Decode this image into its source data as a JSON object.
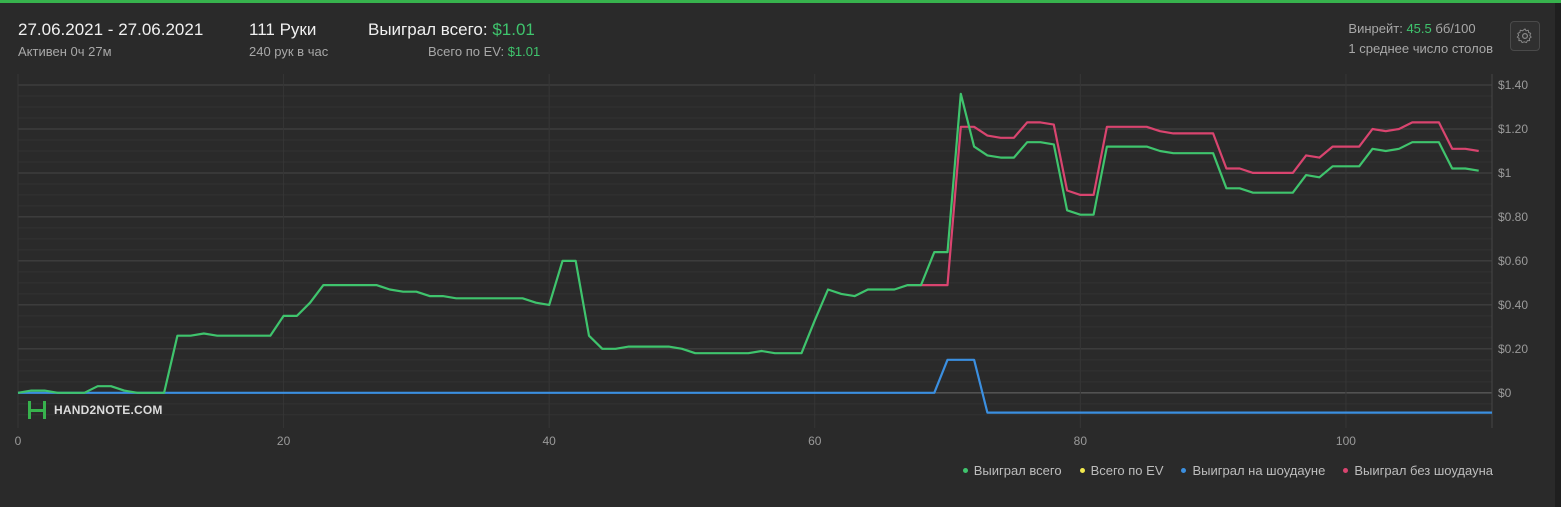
{
  "header": {
    "date_range": "27.06.2021 - 27.06.2021",
    "active": "Активен 0ч 27м",
    "hands": "111 Руки",
    "hands_per_hour": "240 рук в час",
    "won_total_label": "Выиграл всего:",
    "won_total_value": "$1.01",
    "ev_total_label": "Всего по EV:",
    "ev_total_value": "$1.01",
    "winrate_label": "Винрейт:",
    "winrate_value": "45.5",
    "winrate_suffix": "бб/100",
    "avg_tables": "1 среднее число столов"
  },
  "settings_icon": "gear-icon",
  "logo": {
    "text": "HAND2NOTE.COM",
    "icon": "h2n-logo-icon"
  },
  "colors": {
    "won_total": "#3fc46d",
    "ev": "#f2e94e",
    "showdown": "#3b8fe0",
    "non_showdown": "#d9446f",
    "accent_bar": "#37b24d"
  },
  "chart_data": {
    "type": "line",
    "x_ticks": [
      0,
      20,
      40,
      60,
      80,
      100
    ],
    "y_ticks": [
      0,
      0.2,
      0.4,
      0.6,
      0.8,
      1.0,
      1.2,
      1.4
    ],
    "y_tick_labels": [
      "$0",
      "$0.20",
      "$0.40",
      "$0.60",
      "$0.80",
      "$1",
      "$1.20",
      "$1.40"
    ],
    "xlim": [
      0,
      111
    ],
    "ylim": [
      -0.16,
      1.45
    ],
    "grid": true,
    "legend_position": "bottom-right",
    "series": [
      {
        "name": "Выиграл всего",
        "color": "#3fc46d",
        "points": [
          [
            0,
            0
          ],
          [
            1,
            0.01
          ],
          [
            2,
            0.01
          ],
          [
            3,
            0
          ],
          [
            4,
            0
          ],
          [
            5,
            0
          ],
          [
            6,
            0.03
          ],
          [
            7,
            0.03
          ],
          [
            8,
            0.01
          ],
          [
            9,
            0
          ],
          [
            10,
            0
          ],
          [
            11,
            0
          ],
          [
            12,
            0.26
          ],
          [
            13,
            0.26
          ],
          [
            14,
            0.27
          ],
          [
            15,
            0.26
          ],
          [
            16,
            0.26
          ],
          [
            17,
            0.26
          ],
          [
            18,
            0.26
          ],
          [
            19,
            0.26
          ],
          [
            20,
            0.35
          ],
          [
            21,
            0.35
          ],
          [
            22,
            0.41
          ],
          [
            23,
            0.49
          ],
          [
            24,
            0.49
          ],
          [
            25,
            0.49
          ],
          [
            26,
            0.49
          ],
          [
            27,
            0.49
          ],
          [
            28,
            0.47
          ],
          [
            29,
            0.46
          ],
          [
            30,
            0.46
          ],
          [
            31,
            0.44
          ],
          [
            32,
            0.44
          ],
          [
            33,
            0.43
          ],
          [
            34,
            0.43
          ],
          [
            35,
            0.43
          ],
          [
            36,
            0.43
          ],
          [
            37,
            0.43
          ],
          [
            38,
            0.43
          ],
          [
            39,
            0.41
          ],
          [
            40,
            0.4
          ],
          [
            41,
            0.6
          ],
          [
            42,
            0.6
          ],
          [
            43,
            0.26
          ],
          [
            44,
            0.2
          ],
          [
            45,
            0.2
          ],
          [
            46,
            0.21
          ],
          [
            47,
            0.21
          ],
          [
            48,
            0.21
          ],
          [
            49,
            0.21
          ],
          [
            50,
            0.2
          ],
          [
            51,
            0.18
          ],
          [
            52,
            0.18
          ],
          [
            53,
            0.18
          ],
          [
            54,
            0.18
          ],
          [
            55,
            0.18
          ],
          [
            56,
            0.19
          ],
          [
            57,
            0.18
          ],
          [
            58,
            0.18
          ],
          [
            59,
            0.18
          ],
          [
            60,
            0.33
          ],
          [
            61,
            0.47
          ],
          [
            62,
            0.45
          ],
          [
            63,
            0.44
          ],
          [
            64,
            0.47
          ],
          [
            65,
            0.47
          ],
          [
            66,
            0.47
          ],
          [
            67,
            0.49
          ],
          [
            68,
            0.49
          ],
          [
            69,
            0.64
          ],
          [
            70,
            0.64
          ],
          [
            71,
            1.36
          ],
          [
            72,
            1.12
          ],
          [
            73,
            1.08
          ],
          [
            74,
            1.07
          ],
          [
            75,
            1.07
          ],
          [
            76,
            1.14
          ],
          [
            77,
            1.14
          ],
          [
            78,
            1.13
          ],
          [
            79,
            0.83
          ],
          [
            80,
            0.81
          ],
          [
            81,
            0.81
          ],
          [
            82,
            1.12
          ],
          [
            83,
            1.12
          ],
          [
            84,
            1.12
          ],
          [
            85,
            1.12
          ],
          [
            86,
            1.1
          ],
          [
            87,
            1.09
          ],
          [
            88,
            1.09
          ],
          [
            89,
            1.09
          ],
          [
            90,
            1.09
          ],
          [
            91,
            0.93
          ],
          [
            92,
            0.93
          ],
          [
            93,
            0.91
          ],
          [
            94,
            0.91
          ],
          [
            95,
            0.91
          ],
          [
            96,
            0.91
          ],
          [
            97,
            0.99
          ],
          [
            98,
            0.98
          ],
          [
            99,
            1.03
          ],
          [
            100,
            1.03
          ],
          [
            101,
            1.03
          ],
          [
            102,
            1.11
          ],
          [
            103,
            1.1
          ],
          [
            104,
            1.11
          ],
          [
            105,
            1.14
          ],
          [
            106,
            1.14
          ],
          [
            107,
            1.14
          ],
          [
            108,
            1.02
          ],
          [
            109,
            1.02
          ],
          [
            110,
            1.01
          ]
        ]
      },
      {
        "name": "Всего по EV",
        "color": "#f2e94e",
        "points": []
      },
      {
        "name": "Выиграл на шоудауне",
        "color": "#3b8fe0",
        "points": [
          [
            0,
            0
          ],
          [
            69,
            0
          ],
          [
            70,
            0.15
          ],
          [
            71,
            0.15
          ],
          [
            72,
            0.15
          ],
          [
            73,
            -0.09
          ],
          [
            111,
            -0.09
          ]
        ]
      },
      {
        "name": "Выиграл без шоудауна",
        "color": "#d9446f",
        "points": [
          [
            67,
            0.49
          ],
          [
            68,
            0.49
          ],
          [
            69,
            0.49
          ],
          [
            70,
            0.49
          ],
          [
            71,
            1.21
          ],
          [
            72,
            1.21
          ],
          [
            73,
            1.17
          ],
          [
            74,
            1.16
          ],
          [
            75,
            1.16
          ],
          [
            76,
            1.23
          ],
          [
            77,
            1.23
          ],
          [
            78,
            1.22
          ],
          [
            79,
            0.92
          ],
          [
            80,
            0.9
          ],
          [
            81,
            0.9
          ],
          [
            82,
            1.21
          ],
          [
            83,
            1.21
          ],
          [
            84,
            1.21
          ],
          [
            85,
            1.21
          ],
          [
            86,
            1.19
          ],
          [
            87,
            1.18
          ],
          [
            88,
            1.18
          ],
          [
            89,
            1.18
          ],
          [
            90,
            1.18
          ],
          [
            91,
            1.02
          ],
          [
            92,
            1.02
          ],
          [
            93,
            1.0
          ],
          [
            94,
            1.0
          ],
          [
            95,
            1.0
          ],
          [
            96,
            1.0
          ],
          [
            97,
            1.08
          ],
          [
            98,
            1.07
          ],
          [
            99,
            1.12
          ],
          [
            100,
            1.12
          ],
          [
            101,
            1.12
          ],
          [
            102,
            1.2
          ],
          [
            103,
            1.19
          ],
          [
            104,
            1.2
          ],
          [
            105,
            1.23
          ],
          [
            106,
            1.23
          ],
          [
            107,
            1.23
          ],
          [
            108,
            1.11
          ],
          [
            109,
            1.11
          ],
          [
            110,
            1.1
          ]
        ]
      }
    ]
  }
}
